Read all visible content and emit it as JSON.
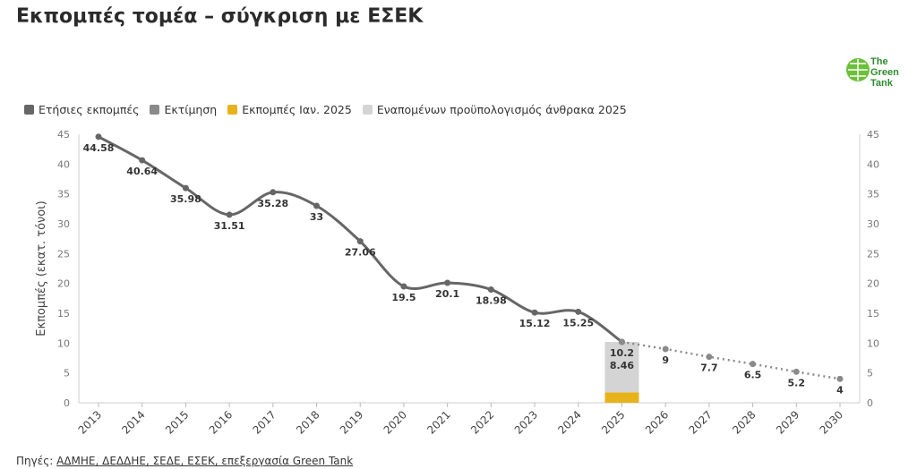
{
  "title": "Εκπομπές τομέα – σύγκριση με ΕΣΕΚ",
  "logo": {
    "line1": "The",
    "line2": "Green",
    "line3": "Tank"
  },
  "legend": [
    {
      "label": "Ετήσιες εκπομπές",
      "color": "#666666"
    },
    {
      "label": "Εκτίμηση",
      "color": "#8a8a8a"
    },
    {
      "label": "Εκπομπές Ιαν. 2025",
      "color": "#e8b21a"
    },
    {
      "label": "Εναπομένων προϋπολογισμός άνθρακα 2025",
      "color": "#d4d4d4"
    }
  ],
  "source": {
    "prefix": "Πηγές: ",
    "text": "ΑΔΜΗΕ, ΔΕΔΔΗΕ, ΣΕΔΕ, ΕΣΕΚ, επεξεργασία Green Tank"
  },
  "chart_data": {
    "type": "line",
    "ylabel": "Εκπομπές (εκατ. τόνοι)",
    "ylim": [
      0,
      45
    ],
    "yticks": [
      0,
      5,
      10,
      15,
      20,
      25,
      30,
      35,
      40,
      45
    ],
    "categories": [
      "2013",
      "2014",
      "2015",
      "2016",
      "2017",
      "2018",
      "2019",
      "2020",
      "2021",
      "2022",
      "2023",
      "2024",
      "2025",
      "2026",
      "2027",
      "2028",
      "2029",
      "2030"
    ],
    "series": [
      {
        "name": "Ετήσιες εκπομπές",
        "style": "solid",
        "color": "#666666",
        "x": [
          "2013",
          "2014",
          "2015",
          "2016",
          "2017",
          "2018",
          "2019",
          "2020",
          "2021",
          "2022",
          "2023",
          "2024",
          "2025"
        ],
        "values": [
          44.58,
          40.64,
          35.98,
          31.51,
          35.28,
          33,
          27.06,
          19.5,
          20.1,
          18.98,
          15.12,
          15.25,
          10.2
        ],
        "labels": [
          "44.58",
          "40.64",
          "35.98",
          "31.51",
          "35.28",
          "33",
          "27.06",
          "19.5",
          "20.1",
          "18.98",
          "15.12",
          "15.25",
          "10.2"
        ]
      },
      {
        "name": "Εκτίμηση",
        "style": "dotted",
        "color": "#8a8a8a",
        "x": [
          "2025",
          "2026",
          "2027",
          "2028",
          "2029",
          "2030"
        ],
        "values": [
          10.2,
          9,
          7.7,
          6.5,
          5.2,
          4
        ],
        "labels": [
          "",
          "9",
          "7.7",
          "6.5",
          "5.2",
          "4"
        ]
      }
    ],
    "stacked_bar": {
      "category": "2025",
      "segments": [
        {
          "name": "Εκπομπές Ιαν. 2025",
          "value": 1.74,
          "color": "#e8b21a"
        },
        {
          "name": "Εναπομένων προϋπολογισμός άνθρακα 2025",
          "value": 8.46,
          "color": "#d4d4d4",
          "label": "8.46"
        }
      ]
    }
  }
}
